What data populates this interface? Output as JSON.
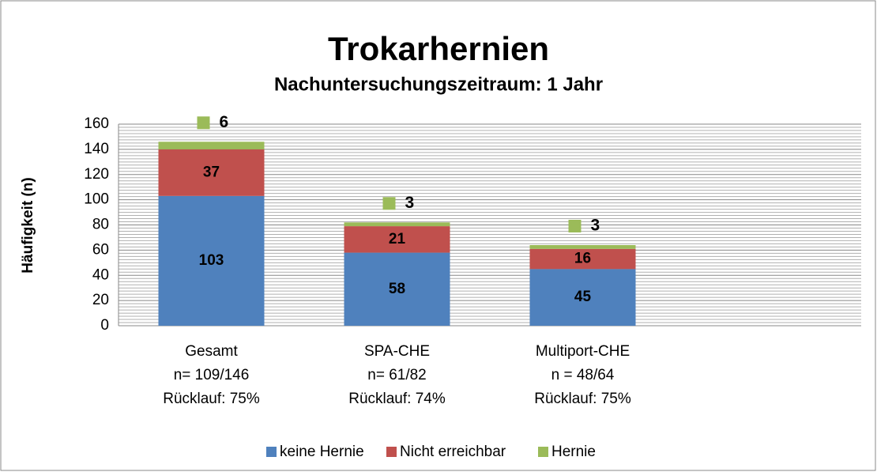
{
  "chart_data": {
    "type": "stacked_bar",
    "title": "Trokarhernien",
    "subtitle": "Nachuntersuchungszeitraum: 1 Jahr",
    "y_label": "Häufigkeit (n)",
    "categories": [
      [
        "Gesamt",
        "n= 109/146",
        "Rücklauf: 75%"
      ],
      [
        "SPA-CHE",
        "n= 61/82",
        "Rücklauf: 74%"
      ],
      [
        "Multiport-CHE",
        "n = 48/64",
        "Rücklauf: 75%"
      ],
      null
    ],
    "series": [
      {
        "name": "keine Hernie",
        "color": "#4f81bd",
        "values": [
          103,
          58,
          45,
          null
        ]
      },
      {
        "name": "Nicht erreichbar",
        "color": "#c0504d",
        "values": [
          37,
          21,
          16,
          null
        ]
      },
      {
        "name": "Hernie",
        "color": "#9bbb59",
        "values": [
          6,
          3,
          3,
          null
        ]
      }
    ],
    "ylim": [
      0,
      160
    ],
    "yticks": [
      0,
      20,
      40,
      60,
      80,
      100,
      120,
      140,
      160
    ],
    "grid": true,
    "minor_grid_divisions": 8,
    "legend": "bottom"
  }
}
